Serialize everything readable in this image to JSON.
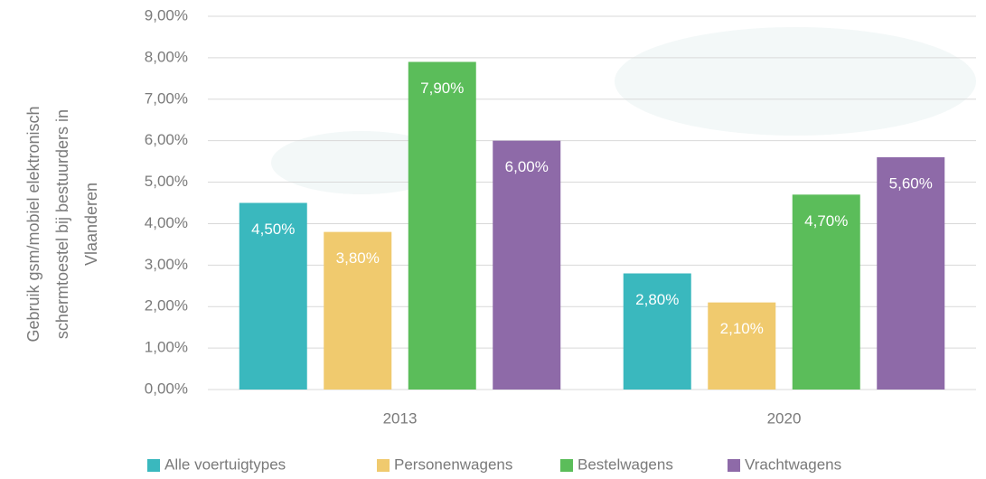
{
  "chart_data": {
    "type": "bar",
    "ylabel": [
      "Gebruik gsm/mobiel elektronisch",
      "schermtoestel bij bestuurders in",
      "Vlaanderen"
    ],
    "categories": [
      "2013",
      "2020"
    ],
    "series": [
      {
        "name": "Alle voertuigtypes",
        "color": "#3ab8be",
        "values": [
          4.5,
          2.8
        ],
        "value_labels": [
          "4,50%",
          "2,80%"
        ]
      },
      {
        "name": "Personenwagens",
        "color": "#f0ca6e",
        "values": [
          3.8,
          2.1
        ],
        "value_labels": [
          "3,80%",
          "2,10%"
        ]
      },
      {
        "name": "Bestelwagens",
        "color": "#5bbd5a",
        "values": [
          7.9,
          4.7
        ],
        "value_labels": [
          "7,90%",
          "4,70%"
        ]
      },
      {
        "name": "Vrachtwagens",
        "color": "#8e6aa8",
        "values": [
          6.0,
          5.6
        ],
        "value_labels": [
          "6,00%",
          "5,60%"
        ]
      }
    ],
    "ylim": [
      0,
      9
    ],
    "yticks": [
      {
        "value": 0,
        "label": "0,00%"
      },
      {
        "value": 1,
        "label": "1,00%"
      },
      {
        "value": 2,
        "label": "2,00%"
      },
      {
        "value": 3,
        "label": "3,00%"
      },
      {
        "value": 4,
        "label": "4,00%"
      },
      {
        "value": 5,
        "label": "5,00%"
      },
      {
        "value": 6,
        "label": "6,00%"
      },
      {
        "value": 7,
        "label": "7,00%"
      },
      {
        "value": 8,
        "label": "8,00%"
      },
      {
        "value": 9,
        "label": "9,00%"
      }
    ],
    "grid": true,
    "legend": "bottom"
  }
}
